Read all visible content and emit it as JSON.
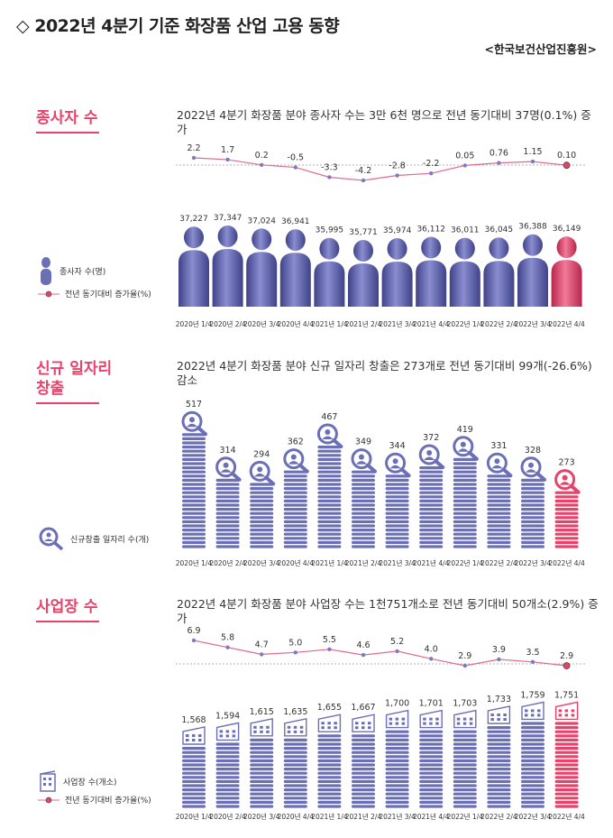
{
  "title": "◇ 2022년 4분기 기준 화장품 산업 고용 동향",
  "source": "<한국보건산업진흥원>",
  "colors": {
    "accent": "#e8426a",
    "series": "#6b6fb5",
    "highlight": "#e8426a",
    "line": "#e06a8c"
  },
  "sections": [
    {
      "title": "종사자 수",
      "description": "2022년 4분기 화장품 분야 종사자 수는 3만 6천 명으로 전년 동기대비 37명(0.1%) 증가",
      "legend_bar": "종사자 수(명)",
      "legend_line": "전년 동기대비 증가율(%)"
    },
    {
      "title": "신규 일자리\n창출",
      "description": "2022년 4분기 화장품 분야 신규 일자리 창출은 273개로 전년 동기대비 99개(-26.6%) 감소",
      "legend_bar": "신규창출 일자리 수(개)"
    },
    {
      "title": "사업장 수",
      "description": "2022년 4분기 화장품 분야 사업장 수는 1천751개소로 전년 동기대비 50개소(2.9%) 증가",
      "legend_bar": "사업장 수(개소)",
      "legend_line": "전년 동기대비 증가율(%)"
    }
  ],
  "chart_data": [
    {
      "type": "bar",
      "icon": "person",
      "categories": [
        "2020년 1/4",
        "2020년 2/4",
        "2020년 3/4",
        "2020년 4/4",
        "2021년 1/4",
        "2021년 2/4",
        "2021년 3/4",
        "2021년 4/4",
        "2022년 1/4",
        "2022년 2/4",
        "2022년 3/4",
        "2022년 4/4"
      ],
      "values": [
        37227,
        37347,
        37024,
        36941,
        35995,
        35771,
        35974,
        36112,
        36011,
        36045,
        36388,
        36149
      ],
      "value_labels": [
        "37,227",
        "37,347",
        "37,024",
        "36,941",
        "35,995",
        "35,771",
        "35,974",
        "36,112",
        "36,011",
        "36,045",
        "36,388",
        "36,149"
      ],
      "rate": [
        2.2,
        1.7,
        0.2,
        -0.5,
        -3.3,
        -4.2,
        -2.8,
        -2.2,
        0.05,
        0.76,
        1.15,
        0.1
      ],
      "rate_labels": [
        "2.2",
        "1.7",
        "0.2",
        "-0.5",
        "-3.3",
        "-4.2",
        "-2.8",
        "-2.2",
        "0.05",
        "0.76",
        "1.15",
        "0.10"
      ],
      "highlight_index": 11
    },
    {
      "type": "bar",
      "icon": "magnifier",
      "categories": [
        "2020년 1/4",
        "2020년 2/4",
        "2020년 3/4",
        "2020년 4/4",
        "2021년 1/4",
        "2021년 2/4",
        "2021년 3/4",
        "2021년 4/4",
        "2022년 1/4",
        "2022년 2/4",
        "2022년 3/4",
        "2022년 4/4"
      ],
      "values": [
        517,
        314,
        294,
        362,
        467,
        349,
        344,
        372,
        419,
        331,
        328,
        273
      ],
      "value_labels": [
        "517",
        "314",
        "294",
        "362",
        "467",
        "349",
        "344",
        "372",
        "419",
        "331",
        "328",
        "273"
      ],
      "highlight_index": 11
    },
    {
      "type": "bar",
      "icon": "building",
      "categories": [
        "2020년 1/4",
        "2020년 2/4",
        "2020년 3/4",
        "2020년 4/4",
        "2021년 1/4",
        "2021년 2/4",
        "2021년 3/4",
        "2021년 4/4",
        "2022년 1/4",
        "2022년 2/4",
        "2022년 3/4",
        "2022년 4/4"
      ],
      "values": [
        1568,
        1594,
        1615,
        1635,
        1655,
        1667,
        1700,
        1701,
        1703,
        1733,
        1759,
        1751
      ],
      "value_labels": [
        "1,568",
        "1,594",
        "1,615",
        "1,635",
        "1,655",
        "1,667",
        "1,700",
        "1,701",
        "1,703",
        "1,733",
        "1,759",
        "1,751"
      ],
      "rate": [
        6.9,
        5.8,
        4.7,
        5.0,
        5.5,
        4.6,
        5.2,
        4.0,
        2.9,
        3.9,
        3.5,
        2.9
      ],
      "rate_labels": [
        "6.9",
        "5.8",
        "4.7",
        "5.0",
        "5.5",
        "4.6",
        "5.2",
        "4.0",
        "2.9",
        "3.9",
        "3.5",
        "2.9"
      ],
      "highlight_index": 11
    }
  ]
}
